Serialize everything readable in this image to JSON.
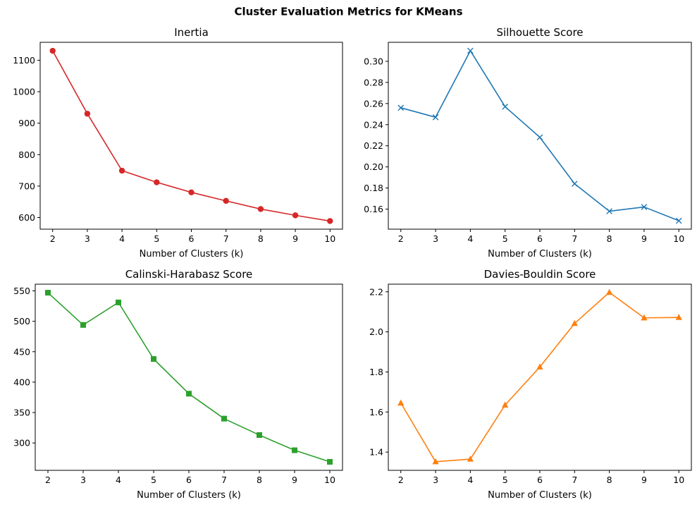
{
  "figure": {
    "title": "Cluster Evaluation Metrics for KMeans"
  },
  "chart_data": [
    {
      "type": "line",
      "title": "Inertia",
      "xlabel": "Number of Clusters (k)",
      "ylabel": "",
      "x": [
        2,
        3,
        4,
        5,
        6,
        7,
        8,
        9,
        10
      ],
      "series": [
        {
          "values": [
            1130,
            930,
            749,
            712,
            680,
            653,
            627,
            607,
            589
          ],
          "color": "#d62728",
          "marker": "circle"
        }
      ],
      "xlim": [
        1.64,
        10.36
      ],
      "ylim": [
        563,
        1157
      ],
      "xticks": [
        2,
        3,
        4,
        5,
        6,
        7,
        8,
        9,
        10
      ],
      "yticks": [
        600,
        700,
        800,
        900,
        1000,
        1100
      ],
      "ytick_labels": [
        "600",
        "700",
        "800",
        "900",
        "1000",
        "1100"
      ],
      "grid": false
    },
    {
      "type": "line",
      "title": "Silhouette Score",
      "xlabel": "Number of Clusters (k)",
      "ylabel": "",
      "x": [
        2,
        3,
        4,
        5,
        6,
        7,
        8,
        9,
        10
      ],
      "series": [
        {
          "values": [
            0.256,
            0.247,
            0.31,
            0.257,
            0.228,
            0.184,
            0.158,
            0.162,
            0.149
          ],
          "color": "#1f77b4",
          "marker": "x"
        }
      ],
      "xlim": [
        1.64,
        10.36
      ],
      "ylim": [
        0.141,
        0.318
      ],
      "xticks": [
        2,
        3,
        4,
        5,
        6,
        7,
        8,
        9,
        10
      ],
      "yticks": [
        0.16,
        0.18,
        0.2,
        0.22,
        0.24,
        0.26,
        0.28,
        0.3
      ],
      "ytick_labels": [
        "0.16",
        "0.18",
        "0.20",
        "0.22",
        "0.24",
        "0.26",
        "0.28",
        "0.30"
      ],
      "grid": false
    },
    {
      "type": "line",
      "title": "Calinski-Harabasz Score",
      "xlabel": "Number of Clusters (k)",
      "ylabel": "",
      "x": [
        2,
        3,
        4,
        5,
        6,
        7,
        8,
        9,
        10
      ],
      "series": [
        {
          "values": [
            547,
            494,
            531,
            438,
            381,
            340,
            313,
            288,
            269
          ],
          "color": "#2ca02c",
          "marker": "square"
        }
      ],
      "xlim": [
        1.64,
        10.36
      ],
      "ylim": [
        255,
        561
      ],
      "xticks": [
        2,
        3,
        4,
        5,
        6,
        7,
        8,
        9,
        10
      ],
      "yticks": [
        300,
        350,
        400,
        450,
        500,
        550
      ],
      "ytick_labels": [
        "300",
        "350",
        "400",
        "450",
        "500",
        "550"
      ],
      "grid": false
    },
    {
      "type": "line",
      "title": "Davies-Bouldin Score",
      "xlabel": "Number of Clusters (k)",
      "ylabel": "",
      "x": [
        2,
        3,
        4,
        5,
        6,
        7,
        8,
        9,
        10
      ],
      "series": [
        {
          "values": [
            1.645,
            1.352,
            1.365,
            1.635,
            1.825,
            2.042,
            2.197,
            2.07,
            2.072
          ],
          "color": "#ff7f0e",
          "marker": "triangle"
        }
      ],
      "xlim": [
        1.64,
        10.36
      ],
      "ylim": [
        1.309,
        2.238
      ],
      "xticks": [
        2,
        3,
        4,
        5,
        6,
        7,
        8,
        9,
        10
      ],
      "yticks": [
        1.4,
        1.6,
        1.8,
        2.0,
        2.2
      ],
      "ytick_labels": [
        "1.4",
        "1.6",
        "1.8",
        "2.0",
        "2.2"
      ],
      "grid": false
    }
  ]
}
